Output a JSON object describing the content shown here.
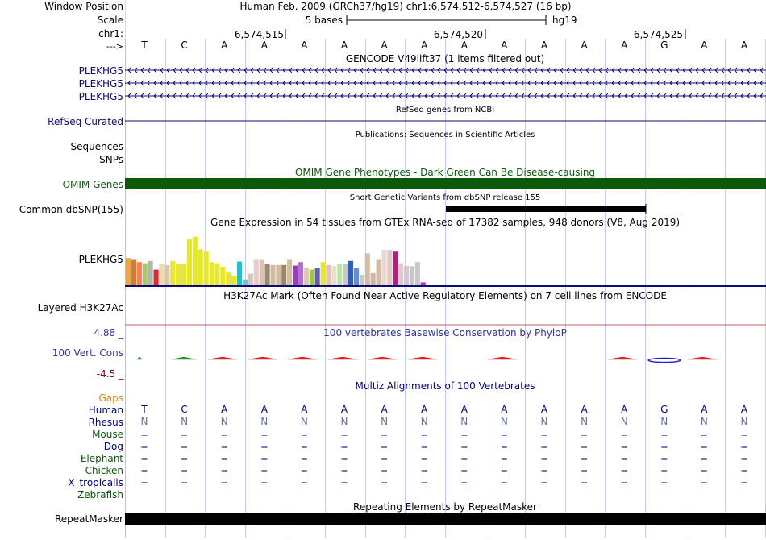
{
  "header": {
    "window_position_label": "Window Position",
    "window_position": "Human Feb. 2009 (GRCh37/hg19)   chr1:6,574,512-6,574,527 (16 bp)",
    "scale_label": "Scale",
    "scale_text": "5 bases",
    "scale_assembly": "hg19",
    "chr_label": "chr1:",
    "coord_ticks": [
      "6,574,515",
      "6,574,520",
      "6,574,525"
    ],
    "strand_label": "--->",
    "bases": [
      "T",
      "C",
      "A",
      "A",
      "A",
      "A",
      "A",
      "A",
      "A",
      "A",
      "A",
      "A",
      "A",
      "G",
      "A",
      "A"
    ]
  },
  "tracks": {
    "gencode": {
      "title": "GENCODE V49lift37 (1 items filtered out)",
      "labels": [
        "PLEKHG5",
        "PLEKHG5",
        "PLEKHG5"
      ],
      "color": "#0c0c78"
    },
    "refseq": {
      "title": "RefSeq genes from NCBI",
      "label": "RefSeq Curated",
      "color": "#0c0c78"
    },
    "publications": {
      "title": "Publications: Sequences in Scientific Articles",
      "label": "Sequences"
    },
    "snps_label": "SNPs",
    "omim": {
      "title": "OMIM Gene Phenotypes - Dark Green Can Be Disease-causing",
      "label": "OMIM Genes",
      "color": "#0a5a0a"
    },
    "dbsnp": {
      "title": "Short Genetic Variants from dbSNP release 155",
      "label": "Common dbSNP(155)"
    },
    "gtex": {
      "title": "Gene Expression in 54 tissues from GTEx RNA-seq of 17382 samples, 948 donors (V8, Aug 2019)",
      "label": "PLEKHG5",
      "values": [
        0.47,
        0.45,
        0.4,
        0.38,
        0.42,
        0.27,
        0.37,
        0.35,
        0.42,
        0.37,
        0.37,
        0.8,
        0.84,
        0.62,
        0.58,
        0.4,
        0.38,
        0.32,
        0.22,
        0.17,
        0.41,
        0.1,
        0.2,
        0.45,
        0.45,
        0.37,
        0.35,
        0.35,
        0.35,
        0.45,
        0.34,
        0.4,
        0.3,
        0.27,
        0.3,
        0.4,
        0.35,
        0.33,
        0.37,
        0.37,
        0.42,
        0.3,
        0.18,
        0.55,
        0.21,
        0.45,
        0.61,
        0.61,
        0.58,
        0.38,
        0.33,
        0.33,
        0.4,
        0.05
      ],
      "colors": [
        "#f2a33a",
        "#d87b2c",
        "#f47f58",
        "#a9c96c",
        "#aeb9ae",
        "#e5242c",
        "#eedcb0",
        "#d9c7a7",
        "#e8e82a",
        "#e8e82a",
        "#e8e82a",
        "#e8e82a",
        "#e8e82a",
        "#e8e82a",
        "#e8e82a",
        "#e8e82a",
        "#e8e82a",
        "#e8e82a",
        "#e8e82a",
        "#e8e82a",
        "#19c6d0",
        "#88bbcc",
        "#d6c8bb",
        "#eacbcb",
        "#d9c4b4",
        "#9a8870",
        "#d2bca4",
        "#d2bca4",
        "#9e8664",
        "#d2bca4",
        "#9a3cc0",
        "#b46ed0",
        "#e0c8b0",
        "#9ac84a",
        "#6a5ab0",
        "#e8e82a",
        "#e8c0b8",
        "#e8e0cc",
        "#b8e8a8",
        "#c8c8c8",
        "#2a60c0",
        "#6090d8",
        "#c8c8c8",
        "#d2bca4",
        "#c8b8a8",
        "#d2bca4",
        "#e8d8d0",
        "#e0c8c8",
        "#b02080",
        "#e0c8c8",
        "#d0c8d0",
        "#c8c8c8",
        "#c8c8c8",
        "#b030c0"
      ]
    },
    "h3k27ac": {
      "title": "H3K27Ac Mark (Often Found Near Active Regulatory Elements) on 7 cell lines from ENCODE",
      "label": "Layered H3K27Ac"
    },
    "phylop": {
      "title": "100 vertebrates Basewise Conservation by PhyloP",
      "label": "100 Vert. Cons",
      "max": "4.88 _",
      "min": "-4.5 _"
    },
    "multiz": {
      "title": "Multiz Alignments of 100 Vertebrates",
      "gaps_label": "Gaps",
      "species": [
        "Human",
        "Rhesus",
        "Mouse",
        "Dog",
        "Elephant",
        "Chicken",
        "X_tropicalis",
        "Zebrafish"
      ],
      "rhesus_char": "N",
      "other_char": "="
    },
    "repeatmasker": {
      "title": "Repeating Elements by RepeatMasker",
      "label": "RepeatMasker"
    }
  },
  "colors": {
    "grid": "#c8c8ff",
    "track_title": "#000000",
    "omim_title": "#0a5a0a",
    "phylop_title": "#333399",
    "multiz_title": "#000080",
    "gaps": "#d88a00",
    "species_green": "#0a5a0a",
    "species_navy": "#000080",
    "left_rule": "#f0a0a0"
  }
}
